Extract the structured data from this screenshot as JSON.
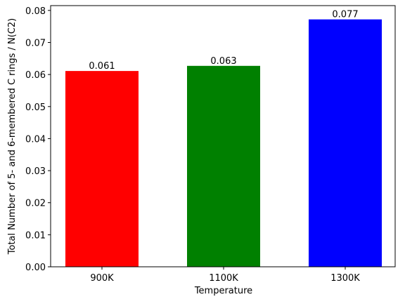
{
  "chart_data": {
    "type": "bar",
    "x_label": "Temperature",
    "y_label": "Total Number of 5- and 6-membered C rings / N(C2)",
    "categories": [
      "900K",
      "1100K",
      "1300K"
    ],
    "values": [
      0.0611,
      0.0627,
      0.0772
    ],
    "value_labels": [
      "0.061",
      "0.063",
      "0.077"
    ],
    "colors": [
      "#ff0000",
      "#008000",
      "#0000ff"
    ],
    "ylim": [
      0,
      0.0815
    ],
    "yticks": [
      {
        "value": 0,
        "label": "0.00"
      },
      0.01,
      0.02,
      0.03,
      0.04,
      0.05,
      0.06,
      0.07,
      0.08
    ],
    "grid": false
  }
}
